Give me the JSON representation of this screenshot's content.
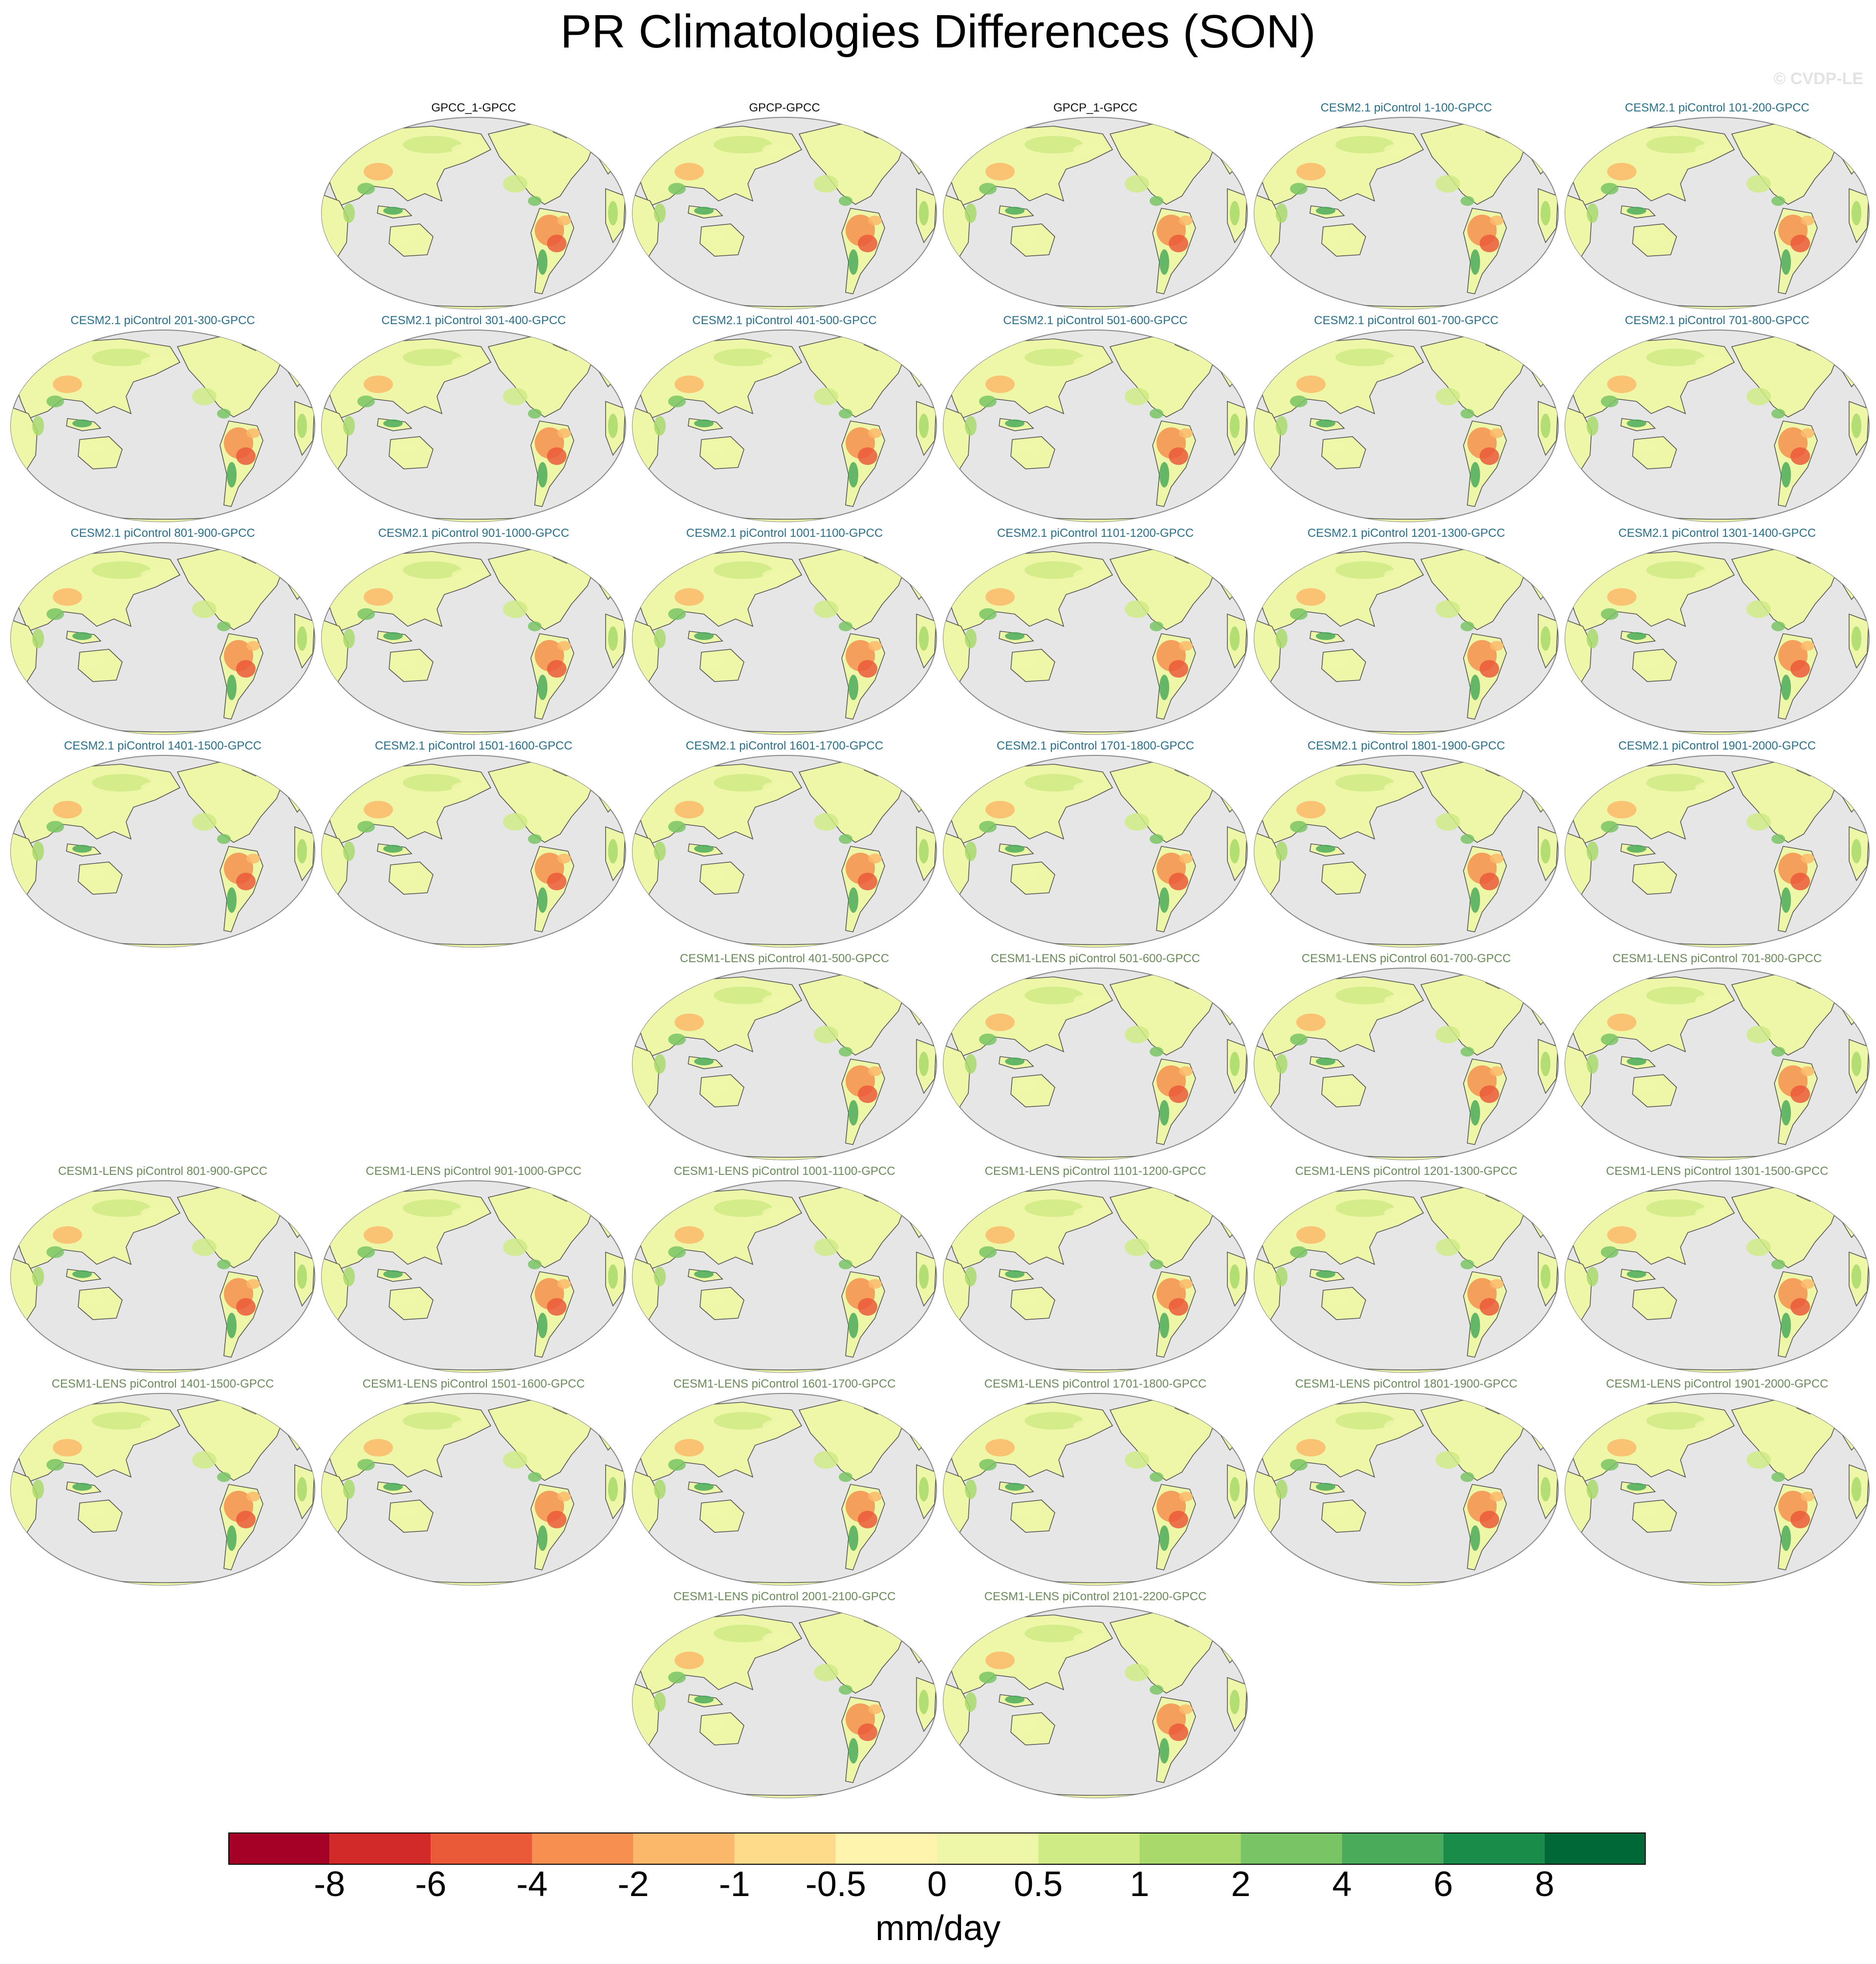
{
  "title": "PR Climatologies Differences (SON)",
  "watermark": "© CVDP-LE",
  "colors": {
    "ocean": "#e6e6e6",
    "coast": "#555555",
    "palette": [
      "#a50026",
      "#d22a28",
      "#ea5a39",
      "#f68f50",
      "#fcb86a",
      "#fddb8a",
      "#fff4ae",
      "#eef7a8",
      "#cfeb85",
      "#a8d96a",
      "#79c465",
      "#4aab5b",
      "#1a8c4a",
      "#006837"
    ]
  },
  "colorbar": {
    "labels": [
      "-8",
      "-6",
      "-4",
      "-2",
      "-1",
      "-0.5",
      "0",
      "0.5",
      "1",
      "2",
      "4",
      "6",
      "8"
    ],
    "units": "mm/day"
  },
  "rows": [
    {
      "cols": [
        1,
        2,
        3,
        4,
        5
      ],
      "titles": [
        "GPCC_1-GPCC",
        "GPCP-GPCC",
        "GPCP_1-GPCC",
        "CESM2.1 piControl 1-100-GPCC",
        "CESM2.1 piControl 101-200-GPCC"
      ],
      "groups": [
        "obs",
        "obs",
        "obs",
        "cesm2",
        "cesm2"
      ]
    },
    {
      "cols": [
        0,
        1,
        2,
        3,
        4,
        5
      ],
      "titles": [
        "CESM2.1 piControl 201-300-GPCC",
        "CESM2.1 piControl 301-400-GPCC",
        "CESM2.1 piControl 401-500-GPCC",
        "CESM2.1 piControl 501-600-GPCC",
        "CESM2.1 piControl 601-700-GPCC",
        "CESM2.1 piControl 701-800-GPCC"
      ],
      "groups": [
        "cesm2",
        "cesm2",
        "cesm2",
        "cesm2",
        "cesm2",
        "cesm2"
      ]
    },
    {
      "cols": [
        0,
        1,
        2,
        3,
        4,
        5
      ],
      "titles": [
        "CESM2.1 piControl 801-900-GPCC",
        "CESM2.1 piControl 901-1000-GPCC",
        "CESM2.1 piControl 1001-1100-GPCC",
        "CESM2.1 piControl 1101-1200-GPCC",
        "CESM2.1 piControl 1201-1300-GPCC",
        "CESM2.1 piControl 1301-1400-GPCC"
      ],
      "groups": [
        "cesm2",
        "cesm2",
        "cesm2",
        "cesm2",
        "cesm2",
        "cesm2"
      ]
    },
    {
      "cols": [
        0,
        1,
        2,
        3,
        4,
        5
      ],
      "titles": [
        "CESM2.1 piControl 1401-1500-GPCC",
        "CESM2.1 piControl 1501-1600-GPCC",
        "CESM2.1 piControl 1601-1700-GPCC",
        "CESM2.1 piControl 1701-1800-GPCC",
        "CESM2.1 piControl 1801-1900-GPCC",
        "CESM2.1 piControl 1901-2000-GPCC"
      ],
      "groups": [
        "cesm2",
        "cesm2",
        "cesm2",
        "cesm2",
        "cesm2",
        "cesm2"
      ]
    },
    {
      "cols": [
        2,
        3,
        4,
        5
      ],
      "titles": [
        "CESM1-LENS piControl 401-500-GPCC",
        "CESM1-LENS piControl 501-600-GPCC",
        "CESM1-LENS piControl 601-700-GPCC",
        "CESM1-LENS piControl 701-800-GPCC"
      ],
      "groups": [
        "cesm1",
        "cesm1",
        "cesm1",
        "cesm1"
      ]
    },
    {
      "cols": [
        0,
        1,
        2,
        3,
        4,
        5
      ],
      "titles": [
        "CESM1-LENS piControl 801-900-GPCC",
        "CESM1-LENS piControl 901-1000-GPCC",
        "CESM1-LENS piControl 1001-1100-GPCC",
        "CESM1-LENS piControl 1101-1200-GPCC",
        "CESM1-LENS piControl 1201-1300-GPCC",
        "CESM1-LENS piControl 1301-1500-GPCC"
      ],
      "groups": [
        "cesm1",
        "cesm1",
        "cesm1",
        "cesm1",
        "cesm1",
        "cesm1"
      ]
    },
    {
      "cols": [
        0,
        1,
        2,
        3,
        4,
        5
      ],
      "titles": [
        "CESM1-LENS piControl 1401-1500-GPCC",
        "CESM1-LENS piControl 1501-1600-GPCC",
        "CESM1-LENS piControl 1601-1700-GPCC",
        "CESM1-LENS piControl 1701-1800-GPCC",
        "CESM1-LENS piControl 1801-1900-GPCC",
        "CESM1-LENS piControl 1901-2000-GPCC"
      ],
      "groups": [
        "cesm1",
        "cesm1",
        "cesm1",
        "cesm1",
        "cesm1",
        "cesm1"
      ]
    },
    {
      "cols": [
        2,
        3
      ],
      "titles": [
        "CESM1-LENS piControl 2001-2100-GPCC",
        "CESM1-LENS piControl 2101-2200-GPCC"
      ],
      "groups": [
        "cesm1",
        "cesm1"
      ]
    }
  ]
}
